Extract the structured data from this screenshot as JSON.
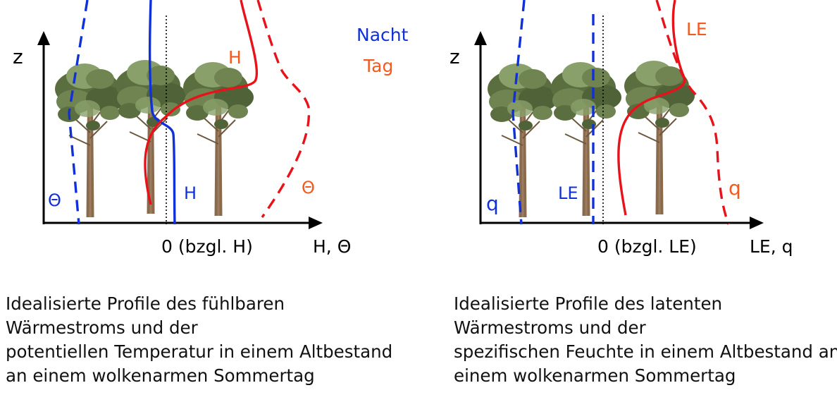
{
  "colors": {
    "night": "#1030d8",
    "day": "#e8121a",
    "day_label": "#f25a1f",
    "axis": "#000000",
    "trunk": "#8a6a4d",
    "foliage_dark": "#4f6238",
    "foliage_light": "#8aa06a"
  },
  "left_panel": {
    "axis_z_label": "z",
    "axis_x_label": "H, Θ",
    "zero_label": "0 (bzgl. H)",
    "legend_night": "Nacht",
    "legend_day": "Tag",
    "curve_labels": {
      "day_flux": "H",
      "night_flux": "H",
      "night_temp": "Θ",
      "day_temp": "Θ"
    },
    "caption": [
      "Idealisierte Profile des fühlbaren",
      "Wärmestroms und der",
      "potentiellen Temperatur in einem Altbestand",
      "an einem wolkenarmen Sommertag"
    ]
  },
  "right_panel": {
    "axis_z_label": "z",
    "axis_x_label": "LE, q",
    "zero_label": "0 (bzgl. LE)",
    "curve_labels": {
      "day_flux": "LE",
      "night_flux": "LE",
      "night_q": "q",
      "day_q": "q"
    },
    "caption": [
      "Idealisierte Profile des latenten",
      "Wärmestroms und der",
      "spezifischen Feuchte in einem Altbestand an",
      "einem wolkenarmen Sommertag"
    ]
  }
}
